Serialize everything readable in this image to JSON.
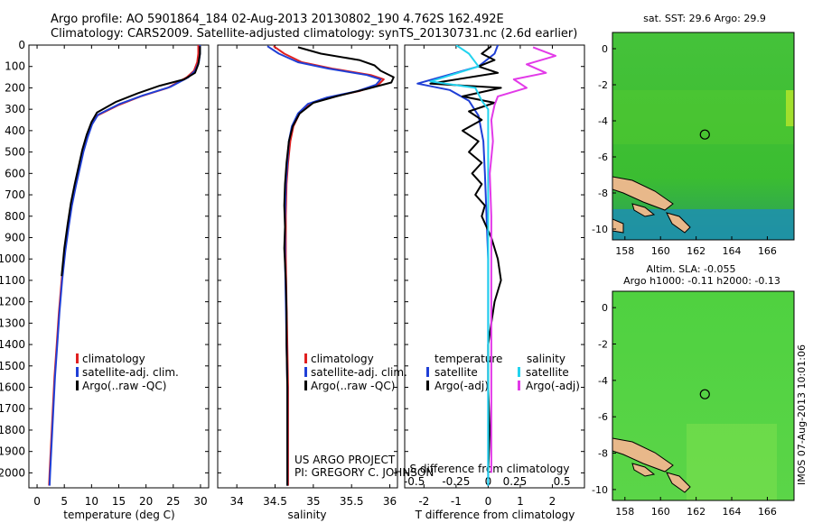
{
  "header": {
    "line1": "Argo profile: AO 5901864_184 02-Aug-2013 20130802_190 4.762S 162.492E",
    "line2": "Climatology: CARS2009. Satellite-adjusted climatology: synTS_20130731.nc (2.6d earlier)"
  },
  "credit": {
    "line1": "US ARGO PROJECT",
    "line2": "PI: GREGORY C. JOHNSON"
  },
  "stamp": "IMOS 07-Aug-2013 10:01:06",
  "colors": {
    "climatology": "#e02020",
    "satellite": "#1f3fd6",
    "argo": "#000000",
    "satellite_s": "#22d3ee",
    "argo_s": "#e23ae8",
    "map_green": "#3cbf33",
    "land": "#e8b88a"
  },
  "chart_data": [
    {
      "type": "line",
      "name": "temperature-profile",
      "xlabel": "temperature (deg C)",
      "ylabel": "",
      "xlim": [
        -1.5,
        31.5
      ],
      "ylim": [
        2070,
        0
      ],
      "xticks": [
        0,
        5,
        10,
        15,
        20,
        25,
        30
      ],
      "xtick_labels": [
        "0",
        "5",
        "10",
        "15",
        "20",
        "25",
        "30"
      ],
      "yticks": [
        0,
        100,
        200,
        300,
        400,
        500,
        600,
        700,
        800,
        900,
        1000,
        1100,
        1200,
        1300,
        1400,
        1500,
        1600,
        1700,
        1800,
        1900,
        2000
      ],
      "legend": [
        "climatology",
        "satellite-adj. clim.",
        "Argo(..raw -QC)"
      ],
      "series": [
        {
          "name": "climatology",
          "color": "#e02020",
          "points": [
            [
              29.6,
              0
            ],
            [
              29.6,
              40
            ],
            [
              29.4,
              80
            ],
            [
              28.8,
              120
            ],
            [
              27.5,
              150
            ],
            [
              24,
              200
            ],
            [
              19,
              240
            ],
            [
              15,
              280
            ],
            [
              11,
              330
            ],
            [
              10,
              370
            ],
            [
              9.2,
              430
            ],
            [
              8.4,
              500
            ],
            [
              7.7,
              580
            ],
            [
              7,
              660
            ],
            [
              6.3,
              750
            ],
            [
              5.7,
              850
            ],
            [
              5.1,
              960
            ],
            [
              4.5,
              1100
            ],
            [
              4,
              1250
            ],
            [
              3.6,
              1400
            ],
            [
              3.2,
              1550
            ],
            [
              2.9,
              1700
            ],
            [
              2.6,
              1850
            ],
            [
              2.3,
              2000
            ],
            [
              2.2,
              2060
            ]
          ]
        },
        {
          "name": "satellite-adj. clim.",
          "color": "#1f3fd6",
          "points": [
            [
              29.9,
              0
            ],
            [
              29.9,
              40
            ],
            [
              29.7,
              80
            ],
            [
              29,
              120
            ],
            [
              27.8,
              150
            ],
            [
              24.5,
              195
            ],
            [
              19.5,
              235
            ],
            [
              15.2,
              275
            ],
            [
              11.2,
              325
            ],
            [
              10.1,
              370
            ],
            [
              9.3,
              430
            ],
            [
              8.5,
              500
            ],
            [
              7.8,
              580
            ],
            [
              7.1,
              660
            ],
            [
              6.4,
              750
            ],
            [
              5.8,
              850
            ],
            [
              5.2,
              960
            ],
            [
              4.6,
              1100
            ],
            [
              4.1,
              1250
            ],
            [
              3.7,
              1400
            ],
            [
              3.3,
              1550
            ],
            [
              3,
              1700
            ],
            [
              2.7,
              1850
            ],
            [
              2.4,
              2000
            ],
            [
              2.3,
              2060
            ]
          ]
        },
        {
          "name": "Argo(..raw -QC)",
          "color": "#000000",
          "points": [
            [
              29.9,
              5
            ],
            [
              29.9,
              40
            ],
            [
              29.6,
              90
            ],
            [
              29,
              130
            ],
            [
              27,
              160
            ],
            [
              22.5,
              190
            ],
            [
              18.5,
              225
            ],
            [
              14.5,
              265
            ],
            [
              11,
              315
            ],
            [
              10,
              360
            ],
            [
              9.1,
              420
            ],
            [
              8.3,
              490
            ],
            [
              7.6,
              570
            ],
            [
              6.9,
              650
            ],
            [
              6.2,
              740
            ],
            [
              5.6,
              840
            ],
            [
              5,
              950
            ],
            [
              4.5,
              1080
            ]
          ]
        }
      ]
    },
    {
      "type": "line",
      "name": "salinity-profile",
      "xlabel": "salinity",
      "ylabel": "",
      "xlim": [
        33.75,
        36.1
      ],
      "ylim": [
        2070,
        0
      ],
      "xticks": [
        34,
        34.5,
        35,
        35.5,
        36
      ],
      "xtick_labels": [
        "34",
        "34.5",
        "35",
        "35.5",
        "36"
      ],
      "legend": [
        "climatology",
        "satellite-adj. clim.",
        "Argo(..raw -QC)"
      ],
      "series": [
        {
          "name": "climatology",
          "color": "#e02020",
          "points": [
            [
              34.48,
              5
            ],
            [
              34.62,
              40
            ],
            [
              34.85,
              80
            ],
            [
              35.25,
              110
            ],
            [
              35.75,
              140
            ],
            [
              35.92,
              160
            ],
            [
              35.85,
              185
            ],
            [
              35.6,
              215
            ],
            [
              35.2,
              245
            ],
            [
              34.95,
              275
            ],
            [
              34.82,
              320
            ],
            [
              34.74,
              380
            ],
            [
              34.7,
              450
            ],
            [
              34.67,
              550
            ],
            [
              34.65,
              650
            ],
            [
              34.64,
              800
            ],
            [
              34.64,
              1000
            ],
            [
              34.65,
              1200
            ],
            [
              34.66,
              1400
            ],
            [
              34.67,
              1600
            ],
            [
              34.67,
              1800
            ],
            [
              34.67,
              2000
            ],
            [
              34.67,
              2060
            ]
          ]
        },
        {
          "name": "satellite-adj. clim.",
          "color": "#1f3fd6",
          "points": [
            [
              34.4,
              5
            ],
            [
              34.55,
              40
            ],
            [
              34.8,
              80
            ],
            [
              35.2,
              110
            ],
            [
              35.7,
              140
            ],
            [
              35.88,
              160
            ],
            [
              35.82,
              185
            ],
            [
              35.58,
              215
            ],
            [
              35.18,
              245
            ],
            [
              34.93,
              275
            ],
            [
              34.8,
              320
            ],
            [
              34.72,
              380
            ],
            [
              34.68,
              450
            ],
            [
              34.66,
              550
            ],
            [
              34.64,
              650
            ],
            [
              34.63,
              800
            ],
            [
              34.63,
              1000
            ],
            [
              34.64,
              1200
            ],
            [
              34.65,
              1400
            ],
            [
              34.66,
              1600
            ],
            [
              34.66,
              1800
            ],
            [
              34.66,
              2000
            ],
            [
              34.66,
              2060
            ]
          ]
        },
        {
          "name": "Argo(..raw -QC)",
          "color": "#000000",
          "points": [
            [
              34.8,
              10
            ],
            [
              35.1,
              40
            ],
            [
              35.6,
              70
            ],
            [
              35.8,
              95
            ],
            [
              35.88,
              120
            ],
            [
              36.05,
              150
            ],
            [
              36.02,
              175
            ],
            [
              35.7,
              205
            ],
            [
              35.3,
              240
            ],
            [
              35,
              270
            ],
            [
              34.82,
              320
            ],
            [
              34.73,
              380
            ],
            [
              34.68,
              450
            ],
            [
              34.65,
              550
            ],
            [
              34.63,
              650
            ],
            [
              34.62,
              750
            ],
            [
              34.63,
              850
            ],
            [
              34.62,
              950
            ],
            [
              34.64,
              1100
            ],
            [
              34.65,
              1250
            ],
            [
              34.65,
              1400
            ],
            [
              34.66,
              1600
            ],
            [
              34.66,
              1800
            ],
            [
              34.66,
              2000
            ],
            [
              34.66,
              2060
            ]
          ]
        }
      ]
    },
    {
      "type": "line",
      "name": "difference-profile",
      "xlabel": "T difference from climatology",
      "xlabel_top": "S difference from climatology",
      "ylabel": "",
      "xlim": [
        -2.6,
        3.0
      ],
      "ylim": [
        2070,
        0
      ],
      "xticks": [
        -2,
        -1,
        0,
        1,
        2
      ],
      "xtick_labels": [
        "-2",
        "-1",
        "0",
        "1",
        "2"
      ],
      "s_ticks": [
        "-0.5",
        "-0.25",
        "0",
        "0.25",
        "0.5"
      ],
      "legend": {
        "temperature_title": "temperature",
        "salinity_title": "salinity",
        "items": [
          "satellite",
          "Argo(-adj)",
          "satellite",
          "Argo(-adj)"
        ]
      },
      "series": [
        {
          "name": "satellite",
          "color": "#1f3fd6",
          "points": [
            [
              0.3,
              0
            ],
            [
              0.2,
              40
            ],
            [
              -0.3,
              100
            ],
            [
              -2.2,
              180
            ],
            [
              -1.2,
              210
            ],
            [
              -0.6,
              260
            ],
            [
              -0.3,
              330
            ],
            [
              -0.15,
              450
            ],
            [
              -0.1,
              600
            ],
            [
              -0.05,
              800
            ],
            [
              0,
              1000
            ],
            [
              0,
              1400
            ],
            [
              0,
              1800
            ],
            [
              0,
              2060
            ]
          ]
        },
        {
          "name": "Argo(-adj)",
          "color": "#000000",
          "points": [
            [
              0.1,
              5
            ],
            [
              -0.2,
              40
            ],
            [
              0.2,
              70
            ],
            [
              -0.3,
              100
            ],
            [
              0.3,
              130
            ],
            [
              -1.8,
              180
            ],
            [
              0.4,
              200
            ],
            [
              -0.8,
              240
            ],
            [
              0.2,
              270
            ],
            [
              -0.6,
              310
            ],
            [
              -0.2,
              350
            ],
            [
              -0.8,
              400
            ],
            [
              -0.3,
              450
            ],
            [
              -0.6,
              500
            ],
            [
              -0.2,
              550
            ],
            [
              -0.5,
              600
            ],
            [
              -0.2,
              650
            ],
            [
              -0.4,
              700
            ],
            [
              -0.1,
              750
            ],
            [
              -0.2,
              800
            ],
            [
              0.1,
              900
            ],
            [
              0.3,
              1000
            ],
            [
              0.4,
              1100
            ],
            [
              0.2,
              1200
            ],
            [
              0.1,
              1300
            ],
            [
              0,
              1400
            ],
            [
              0,
              1600
            ],
            [
              0.05,
              1800
            ],
            [
              0,
              2000
            ]
          ]
        },
        {
          "name": "satellite",
          "color": "#22d3ee",
          "points": [
            [
              -1,
              0
            ],
            [
              -0.6,
              40
            ],
            [
              -0.3,
              100
            ],
            [
              -1.8,
              170
            ],
            [
              -0.4,
              200
            ],
            [
              -0.2,
              260
            ],
            [
              0,
              300
            ],
            [
              0,
              500
            ],
            [
              0,
              800
            ],
            [
              0,
              1200
            ],
            [
              0,
              1600
            ],
            [
              0,
              2060
            ]
          ]
        },
        {
          "name": "Argo(-adj)",
          "color": "#e23ae8",
          "points": [
            [
              1.4,
              10
            ],
            [
              2.1,
              50
            ],
            [
              1.2,
              90
            ],
            [
              1.8,
              130
            ],
            [
              0.8,
              160
            ],
            [
              1.2,
              200
            ],
            [
              0.3,
              240
            ],
            [
              0.2,
              280
            ],
            [
              0.1,
              350
            ],
            [
              0.15,
              450
            ],
            [
              0.05,
              600
            ],
            [
              0.1,
              800
            ],
            [
              0.1,
              1000
            ],
            [
              0.1,
              1300
            ],
            [
              0.1,
              1600
            ],
            [
              0.1,
              2000
            ]
          ]
        }
      ]
    },
    {
      "type": "heatmap",
      "name": "sst-map",
      "title": "sat. SST: 29.6  Argo: 29.9",
      "xlim": [
        157.3,
        167.5
      ],
      "ylim": [
        -10.6,
        0.9
      ],
      "xticks": [
        158,
        160,
        162,
        164,
        166
      ],
      "yticks": [
        0,
        -2,
        -4,
        -6,
        -8,
        -10
      ],
      "marker": {
        "lon": 162.49,
        "lat": -4.76
      }
    },
    {
      "type": "heatmap",
      "name": "sla-map",
      "title": "Altim. SLA: -0.055",
      "subtitle": "Argo h1000: -0.11 h2000: -0.13",
      "xlim": [
        157.3,
        167.5
      ],
      "ylim": [
        -10.6,
        0.9
      ],
      "xticks": [
        158,
        160,
        162,
        164,
        166
      ],
      "yticks": [
        0,
        -2,
        -4,
        -6,
        -8,
        -10
      ],
      "marker": {
        "lon": 162.49,
        "lat": -4.76
      }
    }
  ]
}
